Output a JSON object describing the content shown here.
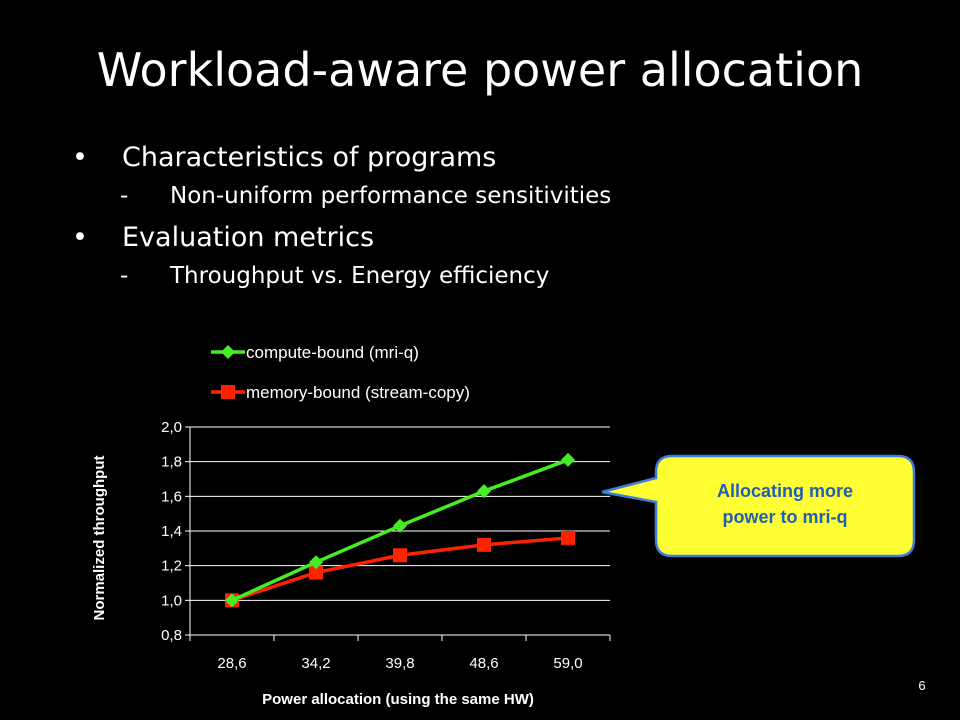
{
  "slide": {
    "title": "Workload-aware power allocation",
    "bullets": [
      {
        "text": "Characteristics of programs",
        "sub": "Non-uniform performance sensitivities"
      },
      {
        "text": "Evaluation metrics",
        "sub": "Throughput vs. Energy efficiency"
      }
    ],
    "bullet_symbol": "•",
    "sub_symbol": "-",
    "callout": {
      "line1": "Allocating more",
      "line2": "power to mri-q"
    },
    "page_number": "6"
  },
  "colors": {
    "background": "#000000",
    "compute_series": "#44ee22",
    "memory_series": "#ff2200",
    "callout_fill": "#ffff33",
    "callout_border": "#3b7fd8",
    "callout_text": "#1f5fb5"
  },
  "chart_data": {
    "type": "line",
    "xlabel": "Power allocation (using the same HW)",
    "ylabel": "Normalized throughput",
    "categories": [
      "28,6",
      "34,2",
      "39,8",
      "48,6",
      "59,0"
    ],
    "ylim": [
      0.8,
      2.0
    ],
    "yticks": [
      0.8,
      1.0,
      1.2,
      1.4,
      1.6,
      1.8,
      2.0
    ],
    "ytick_labels": [
      "0,8",
      "1,0",
      "1,2",
      "1,4",
      "1,6",
      "1,8",
      "2,0"
    ],
    "grid": true,
    "legend_position": "top",
    "series": [
      {
        "name": "compute-bound (mri-q)",
        "marker": "diamond",
        "color": "#44ee22",
        "values": [
          1.0,
          1.22,
          1.43,
          1.63,
          1.81
        ]
      },
      {
        "name": "memory-bound (stream-copy)",
        "marker": "square",
        "color": "#ff2200",
        "values": [
          1.0,
          1.16,
          1.26,
          1.32,
          1.36
        ]
      }
    ]
  }
}
